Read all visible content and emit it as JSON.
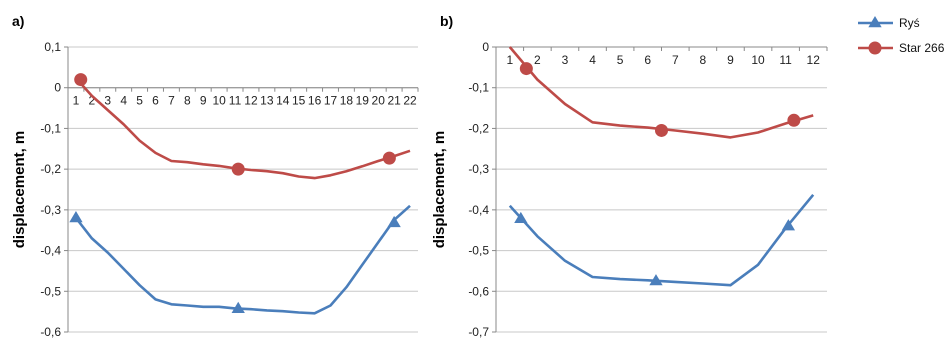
{
  "legend": {
    "entries": [
      {
        "name": "Ryś",
        "color": "#4a7ebb",
        "marker": "triangle"
      },
      {
        "name": "Star 266",
        "color": "#be4b48",
        "marker": "circle"
      }
    ]
  },
  "chart_data": [
    {
      "type": "line",
      "panel_label": "a)",
      "ylabel": "displacement, m",
      "xlabel": "",
      "ylim": [
        -0.6,
        0.1
      ],
      "y_step": 0.1,
      "y_ticks": [
        "0,1",
        "0",
        "-0,1",
        "-0,2",
        "-0,3",
        "-0,4",
        "-0,5",
        "-0,6"
      ],
      "x_range": [
        0.5,
        22.5
      ],
      "x_axis_at_y": 0,
      "categories": [
        "1",
        "2",
        "3",
        "4",
        "5",
        "6",
        "7",
        "8",
        "9",
        "10",
        "11",
        "12",
        "13",
        "14",
        "15",
        "16",
        "17",
        "18",
        "19",
        "20",
        "21",
        "22"
      ],
      "grid": true,
      "series": [
        {
          "name": "Ryś",
          "color": "#4a7ebb",
          "x": [
            1,
            2,
            3,
            4,
            5,
            6,
            7,
            8,
            9,
            10,
            11,
            12,
            13,
            14,
            15,
            16,
            17,
            18,
            19,
            20,
            21,
            22
          ],
          "values": [
            -0.32,
            -0.37,
            -0.405,
            -0.445,
            -0.485,
            -0.52,
            -0.532,
            -0.535,
            -0.538,
            -0.538,
            -0.542,
            -0.544,
            -0.547,
            -0.549,
            -0.552,
            -0.554,
            -0.535,
            -0.49,
            -0.435,
            -0.38,
            -0.325,
            -0.29
          ],
          "markers": [
            {
              "x": 1,
              "y": -0.32
            },
            {
              "x": 11.2,
              "y": -0.543
            },
            {
              "x": 21,
              "y": -0.332
            }
          ]
        },
        {
          "name": "Star 266",
          "color": "#be4b48",
          "x": [
            1.2,
            2,
            3,
            4,
            5,
            6,
            7,
            8,
            9,
            10,
            11,
            12,
            13,
            14,
            15,
            16,
            17,
            18,
            19,
            20,
            21,
            22
          ],
          "values": [
            0.015,
            -0.02,
            -0.055,
            -0.09,
            -0.13,
            -0.16,
            -0.18,
            -0.183,
            -0.188,
            -0.192,
            -0.198,
            -0.202,
            -0.205,
            -0.21,
            -0.218,
            -0.222,
            -0.215,
            -0.205,
            -0.193,
            -0.18,
            -0.168,
            -0.155
          ],
          "markers": [
            {
              "x": 1.3,
              "y": 0.02
            },
            {
              "x": 11.2,
              "y": -0.2
            },
            {
              "x": 20.7,
              "y": -0.173
            }
          ]
        }
      ]
    },
    {
      "type": "line",
      "panel_label": "b)",
      "ylabel": "displacement, m",
      "xlabel": "",
      "ylim": [
        -0.7,
        0
      ],
      "y_step": 0.1,
      "y_ticks": [
        "0",
        "-0,1",
        "-0,2",
        "-0,3",
        "-0,4",
        "-0,5",
        "-0,6",
        "-0,7"
      ],
      "x_range": [
        0.5,
        12.5
      ],
      "x_axis_at_y": 0,
      "categories": [
        "1",
        "2",
        "3",
        "4",
        "5",
        "6",
        "7",
        "8",
        "9",
        "10",
        "11",
        "12"
      ],
      "grid": true,
      "series": [
        {
          "name": "Ryś",
          "color": "#4a7ebb",
          "x": [
            1,
            2,
            3,
            4,
            5,
            6,
            7,
            8,
            9,
            10,
            11,
            12
          ],
          "values": [
            -0.39,
            -0.465,
            -0.525,
            -0.565,
            -0.57,
            -0.573,
            -0.577,
            -0.581,
            -0.585,
            -0.535,
            -0.445,
            -0.363
          ],
          "markers": [
            {
              "x": 1.4,
              "y": -0.422
            },
            {
              "x": 6.3,
              "y": -0.575
            },
            {
              "x": 11.1,
              "y": -0.44
            }
          ]
        },
        {
          "name": "Star 266",
          "color": "#be4b48",
          "x": [
            1,
            2,
            3,
            4,
            5,
            6,
            7,
            8,
            9,
            10,
            11,
            12
          ],
          "values": [
            0.0,
            -0.08,
            -0.14,
            -0.185,
            -0.193,
            -0.198,
            -0.205,
            -0.213,
            -0.222,
            -0.21,
            -0.188,
            -0.168
          ],
          "markers": [
            {
              "x": 1.6,
              "y": -0.053
            },
            {
              "x": 6.5,
              "y": -0.205
            },
            {
              "x": 11.3,
              "y": -0.18
            }
          ]
        }
      ]
    }
  ]
}
